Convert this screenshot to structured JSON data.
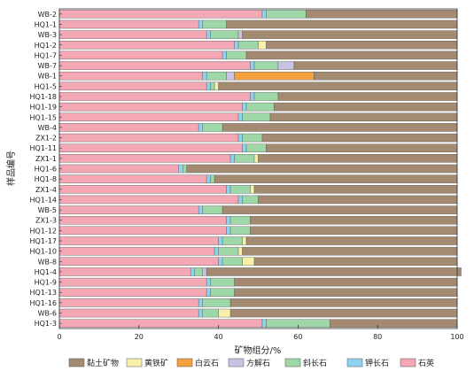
{
  "chart_data": {
    "type": "bar",
    "orientation": "horizontal",
    "stacked": true,
    "xlabel": "矿物组分/%",
    "ylabel": "样品编号",
    "xlim": [
      0,
      100
    ],
    "xticks": [
      0,
      20,
      40,
      60,
      80,
      100
    ],
    "grid": false,
    "legend_position": "bottom",
    "categories": [
      "WB-2",
      "HQ1-1",
      "WB-3",
      "HQ1-2",
      "HQ1-7",
      "WB-7",
      "WB-1",
      "HQ1-5",
      "HQ1-18",
      "HQ1-19",
      "HQ1-15",
      "WB-4",
      "ZX1-2",
      "HQ1-11",
      "ZX1-1",
      "HQ1-6",
      "HQ1-8",
      "ZX1-4",
      "HQ1-14",
      "WB-5",
      "ZX1-3",
      "HQ1-12",
      "HQ1-17",
      "HQ1-10",
      "WB-8",
      "HQ1-4",
      "HQ1-9",
      "HQ1-13",
      "HQ1-16",
      "WB-6",
      "HQ1-3"
    ],
    "series": [
      {
        "name": "石英",
        "color": "#f4a7b4",
        "values": [
          51,
          35,
          37,
          44,
          41,
          48,
          36,
          37,
          48,
          46,
          45,
          35,
          45,
          46,
          43,
          30,
          37,
          42,
          45,
          35,
          42,
          42,
          40,
          39,
          40,
          33,
          37,
          37,
          35,
          35,
          51
        ]
      },
      {
        "name": "钾长石",
        "color": "#8fd3f0",
        "values": [
          1,
          1,
          1,
          1,
          1,
          1,
          1,
          1,
          1,
          1,
          1,
          1,
          1,
          1,
          1,
          1,
          1,
          1,
          1,
          1,
          1,
          1,
          1,
          1,
          1,
          1,
          1,
          1,
          1,
          1,
          1
        ]
      },
      {
        "name": "斜长石",
        "color": "#9fd8a8",
        "values": [
          10,
          6,
          7,
          5,
          5,
          6,
          5,
          1,
          6,
          7,
          7,
          5,
          5,
          5,
          5,
          1,
          1,
          5,
          4,
          5,
          5,
          5,
          5,
          5,
          5,
          2,
          6,
          6,
          7,
          4,
          16
        ]
      },
      {
        "name": "方解石",
        "color": "#c9c3e3",
        "values": [
          0,
          0,
          1,
          0,
          0,
          4,
          2,
          0,
          0,
          0,
          0,
          0,
          0,
          0,
          0,
          0,
          0,
          0,
          0,
          0,
          0,
          0,
          0,
          0,
          0,
          1,
          0,
          0,
          0,
          0,
          0
        ]
      },
      {
        "name": "白云石",
        "color": "#f4a241",
        "values": [
          0,
          0,
          0,
          0,
          0,
          0,
          20,
          0,
          0,
          0,
          0,
          0,
          0,
          0,
          0,
          0,
          0,
          0,
          0,
          0,
          0,
          0,
          0,
          0,
          0,
          0,
          0,
          0,
          0,
          0,
          0
        ]
      },
      {
        "name": "黄铁矿",
        "color": "#f8f0a8",
        "values": [
          0,
          0,
          0,
          2,
          0,
          0,
          0,
          1,
          0,
          0,
          0,
          0,
          0,
          0,
          1,
          0,
          0,
          1,
          0,
          0,
          0,
          0,
          1,
          1,
          3,
          0,
          0,
          0,
          0,
          3,
          0
        ]
      },
      {
        "name": "黏土矿物",
        "color": "#a38a70",
        "values": [
          38,
          58,
          54,
          48,
          53,
          41,
          36,
          60,
          45,
          46,
          47,
          59,
          49,
          48,
          50,
          68,
          61,
          51,
          50,
          59,
          52,
          52,
          53,
          54,
          51,
          64,
          56,
          56,
          57,
          57,
          32
        ]
      }
    ]
  },
  "legend": [
    {
      "name": "黏土矿物",
      "color": "#a38a70"
    },
    {
      "name": "黄铁矿",
      "color": "#f8f0a8"
    },
    {
      "name": "白云石",
      "color": "#f4a241"
    },
    {
      "name": "方解石",
      "color": "#c9c3e3"
    },
    {
      "name": "斜长石",
      "color": "#9fd8a8"
    },
    {
      "name": "钾长石",
      "color": "#8fd3f0"
    },
    {
      "name": "石英",
      "color": "#f4a7b4"
    }
  ]
}
